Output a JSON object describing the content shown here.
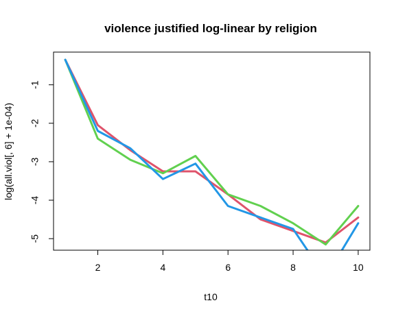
{
  "chart_data": {
    "type": "line",
    "title": "violence justified log-linear by religion",
    "xlabel": "t10",
    "ylabel": "log(all.viol[, 6] + 1e-04)",
    "xlim": [
      0.64,
      10.36
    ],
    "ylim": [
      -5.3,
      -0.15
    ],
    "x_ticks": [
      2,
      4,
      6,
      8,
      10
    ],
    "y_ticks": [
      -1,
      -2,
      -3,
      -4,
      -5
    ],
    "x": [
      1,
      2,
      3,
      4,
      5,
      6,
      7,
      8,
      9,
      10
    ],
    "series": [
      {
        "name": "red",
        "color": "#DF536B",
        "values": [
          -0.35,
          -2.05,
          -2.7,
          -3.25,
          -3.25,
          -3.85,
          -4.5,
          -4.8,
          -5.1,
          -4.45
        ]
      },
      {
        "name": "green",
        "color": "#61D04F",
        "values": [
          -0.35,
          -2.4,
          -2.95,
          -3.3,
          -2.85,
          -3.85,
          -4.15,
          -4.6,
          -5.15,
          -4.15
        ]
      },
      {
        "name": "blue",
        "color": "#2297E6",
        "values": [
          -0.35,
          -2.2,
          -2.65,
          -3.45,
          -3.05,
          -4.15,
          -4.45,
          -4.75,
          -6.0,
          -4.6
        ]
      }
    ]
  }
}
